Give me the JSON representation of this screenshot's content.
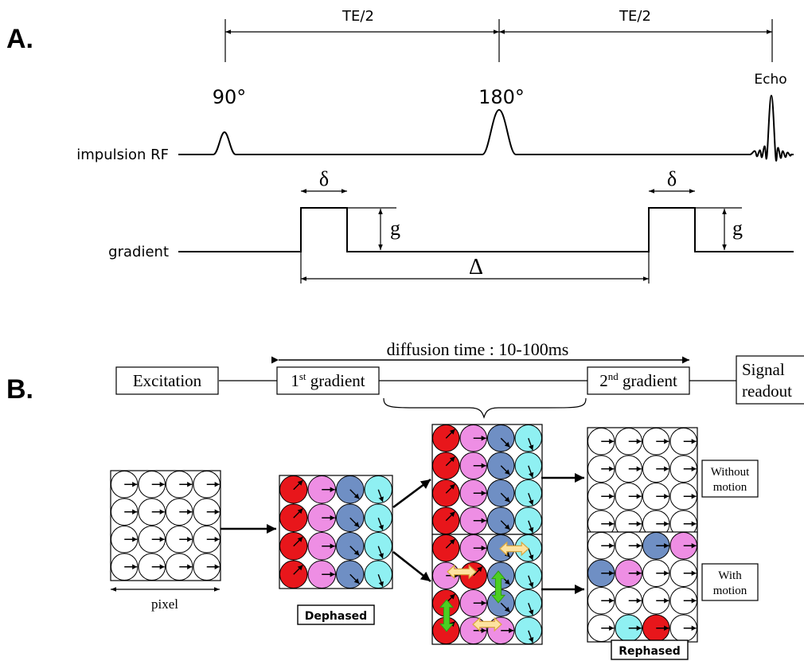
{
  "colors": {
    "red": "#e8161b",
    "pink": "#ee8ee4",
    "blue": "#6f8fc4",
    "cyan": "#8ff0f2",
    "white": "#ffffff",
    "green": "#4ccf22",
    "yellow": "#fde2a0",
    "ink": "#000000"
  },
  "panel_a": {
    "letter": "A.",
    "te_half_left": "TE/2",
    "te_half_right": "TE/2",
    "rf_label": "impulsion RF",
    "gradient_label": "gradient",
    "pulse_90": "90°",
    "pulse_180": "180°",
    "echo": "Echo",
    "delta_left": "δ",
    "delta_right": "δ",
    "g_left": "g",
    "g_right": "g",
    "big_delta": "Δ"
  },
  "panel_b": {
    "letter": "B.",
    "diffusion_time": "diffusion time : 10-100ms",
    "excitation": "Excitation",
    "first_gradient_num": "1",
    "first_gradient_sup": "st",
    "first_gradient_word": " gradient",
    "second_gradient_num": "2",
    "second_gradient_sup": "nd",
    "second_gradient_word": " gradient",
    "signal_line1": "Signal",
    "signal_line2": "readout",
    "pixel_label": "pixel",
    "dephased": "Dephased",
    "rephased": "Rephased",
    "without_line1": "Without",
    "without_line2": "motion",
    "with_line1": "With",
    "with_line2": "motion"
  }
}
